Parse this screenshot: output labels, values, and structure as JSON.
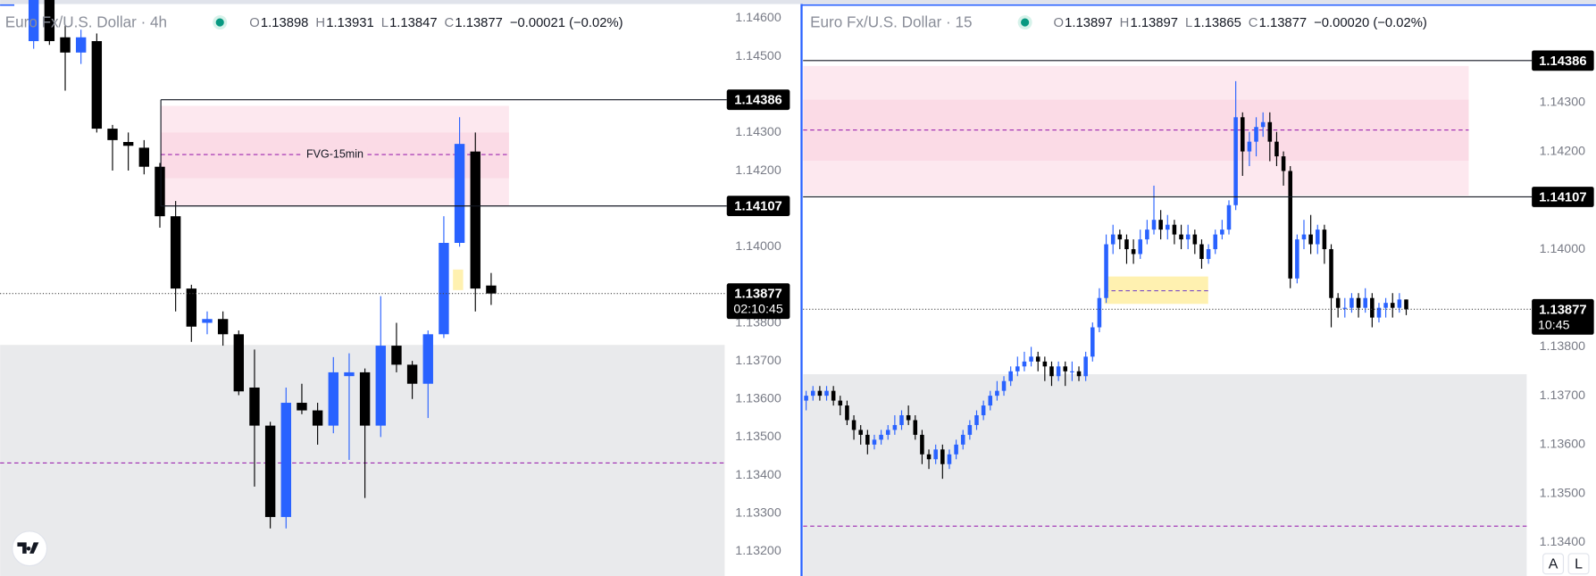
{
  "chart_data": [
    {
      "type": "candlestick",
      "title": "Euro Fx/U.S. Dollar · 4h",
      "legend_fields": [
        {
          "key": "O",
          "value": "1.13898"
        },
        {
          "key": "H",
          "value": "1.13931"
        },
        {
          "key": "L",
          "value": "1.13847"
        },
        {
          "key": "C",
          "value": "1.13877"
        }
      ],
      "change": "−0.00021 (−0.02%)",
      "ylim": [
        1.13135,
        1.14648
      ],
      "yticks": [
        {
          "value": 1.146,
          "label": "1.14600"
        },
        {
          "value": 1.145,
          "label": "1.14500"
        },
        {
          "value": 1.143,
          "label": "1.14300"
        },
        {
          "value": 1.142,
          "label": "1.14200"
        },
        {
          "value": 1.14,
          "label": "1.14000"
        },
        {
          "value": 1.138,
          "label": "1.13800"
        },
        {
          "value": 1.137,
          "label": "1.13700"
        },
        {
          "value": 1.136,
          "label": "1.13600"
        },
        {
          "value": 1.135,
          "label": "1.13500"
        },
        {
          "value": 1.134,
          "label": "1.13400"
        },
        {
          "value": 1.133,
          "label": "1.13300"
        },
        {
          "value": 1.132,
          "label": "1.13200"
        }
      ],
      "open": [
        1.1454,
        1.1466,
        1.1455,
        1.1451,
        1.1454,
        1.1431,
        1.14275,
        1.1426,
        1.1421,
        1.1408,
        1.1389,
        1.138,
        1.1381,
        1.1377,
        1.1363,
        1.1353,
        1.1329,
        1.1359,
        1.1357,
        1.1353,
        1.1366,
        1.1367,
        1.1353,
        1.1374,
        1.1369,
        1.1364,
        1.1377,
        1.1401,
        1.1425,
        1.13898
      ],
      "high": [
        1.1468,
        1.1467,
        1.1458,
        1.1457,
        1.1456,
        1.1432,
        1.143,
        1.1428,
        1.1422,
        1.1412,
        1.139,
        1.1383,
        1.1383,
        1.1378,
        1.1373,
        1.1354,
        1.1363,
        1.1364,
        1.1359,
        1.1371,
        1.1372,
        1.1368,
        1.1387,
        1.138,
        1.137,
        1.1378,
        1.1408,
        1.1434,
        1.143,
        1.13931
      ],
      "low": [
        1.1452,
        1.1453,
        1.1441,
        1.1448,
        1.143,
        1.142,
        1.142,
        1.1419,
        1.1405,
        1.1383,
        1.1375,
        1.1377,
        1.1374,
        1.1361,
        1.1337,
        1.1326,
        1.1326,
        1.1356,
        1.1348,
        1.1351,
        1.1344,
        1.1334,
        1.135,
        1.1367,
        1.136,
        1.1355,
        1.1376,
        1.14,
        1.1383,
        1.13847
      ],
      "close": [
        1.1466,
        1.1454,
        1.1451,
        1.1455,
        1.1431,
        1.1428,
        1.14265,
        1.1421,
        1.1408,
        1.1389,
        1.1379,
        1.1381,
        1.1377,
        1.1362,
        1.1353,
        1.1329,
        1.1359,
        1.1357,
        1.1353,
        1.1367,
        1.1367,
        1.1353,
        1.1374,
        1.1369,
        1.1364,
        1.1377,
        1.1401,
        1.1427,
        1.1389,
        1.13877
      ],
      "up_color": "#2962ff",
      "down_color": "#000000",
      "price_lines": [
        1.14386,
        1.14107
      ],
      "last_price": 1.13877,
      "countdown": "02:10:45",
      "zone": {
        "label": "FVG-15min",
        "top": 1.1437,
        "bottom": 1.14108,
        "inner_top": 1.143,
        "inner_bottom": 1.1418,
        "mid": 1.14242,
        "color": "#fde8ef",
        "inner_color": "#fbdbe6",
        "mid_color": "#9c27b0"
      },
      "highlight": {
        "top": 1.1394,
        "bottom": 1.13886,
        "color": "#fff1b0"
      },
      "shaded_below": 1.13742,
      "shade_color": "#e9eaec",
      "dashed_level": 1.13432,
      "dashed_color": "#9c27b0"
    },
    {
      "type": "candlestick",
      "title": "Euro Fx/U.S. Dollar · 15",
      "legend_fields": [
        {
          "key": "O",
          "value": "1.13897"
        },
        {
          "key": "H",
          "value": "1.13897"
        },
        {
          "key": "L",
          "value": "1.13865"
        },
        {
          "key": "C",
          "value": "1.13877"
        }
      ],
      "change": "−0.00020 (−0.02%)",
      "ylim": [
        1.13331,
        1.1451
      ],
      "yticks": [
        {
          "value": 1.143,
          "label": "1.14300"
        },
        {
          "value": 1.142,
          "label": "1.14200"
        },
        {
          "value": 1.14,
          "label": "1.14000"
        },
        {
          "value": 1.138,
          "label": "1.13800"
        },
        {
          "value": 1.137,
          "label": "1.13700"
        },
        {
          "value": 1.136,
          "label": "1.13600"
        },
        {
          "value": 1.135,
          "label": "1.13500"
        },
        {
          "value": 1.134,
          "label": "1.13400"
        }
      ],
      "open": [
        1.1369,
        1.137,
        1.1371,
        1.137,
        1.1371,
        1.1369,
        1.1368,
        1.1365,
        1.1363,
        1.1362,
        1.136,
        1.1361,
        1.1362,
        1.1363,
        1.1364,
        1.1366,
        1.1365,
        1.1362,
        1.1358,
        1.1357,
        1.1359,
        1.1356,
        1.1358,
        1.136,
        1.1362,
        1.1364,
        1.1366,
        1.1368,
        1.137,
        1.1371,
        1.1373,
        1.1375,
        1.1376,
        1.1377,
        1.1378,
        1.1377,
        1.1376,
        1.1374,
        1.1376,
        1.1375,
        1.1375,
        1.1374,
        1.1378,
        1.1384,
        1.139,
        1.1401,
        1.1403,
        1.1402,
        1.14,
        1.1399,
        1.1402,
        1.1404,
        1.1406,
        1.1404,
        1.1405,
        1.1403,
        1.1402,
        1.1403,
        1.1401,
        1.1398,
        1.14,
        1.1403,
        1.1404,
        1.1409,
        1.1427,
        1.142,
        1.1422,
        1.1425,
        1.1426,
        1.1422,
        1.1419,
        1.1416,
        1.1394,
        1.1402,
        1.1403,
        1.1401,
        1.1404,
        1.14,
        1.139,
        1.1388,
        1.1388,
        1.139,
        1.1388,
        1.139,
        1.1386,
        1.1388,
        1.1389,
        1.1388,
        1.13897
      ],
      "high": [
        1.1371,
        1.1372,
        1.1372,
        1.1372,
        1.1372,
        1.137,
        1.1369,
        1.1366,
        1.1364,
        1.1363,
        1.1362,
        1.1363,
        1.1364,
        1.1366,
        1.1367,
        1.1368,
        1.1366,
        1.1363,
        1.1359,
        1.136,
        1.136,
        1.1359,
        1.1361,
        1.1363,
        1.1365,
        1.1367,
        1.1369,
        1.1371,
        1.1373,
        1.1374,
        1.1376,
        1.1378,
        1.1379,
        1.138,
        1.1379,
        1.1378,
        1.1377,
        1.1377,
        1.1377,
        1.1377,
        1.1376,
        1.1379,
        1.1385,
        1.1392,
        1.1403,
        1.1405,
        1.1404,
        1.1403,
        1.1402,
        1.1404,
        1.1406,
        1.1413,
        1.1408,
        1.1407,
        1.1406,
        1.1405,
        1.1405,
        1.1404,
        1.1402,
        1.1401,
        1.1404,
        1.1406,
        1.141,
        1.14344,
        1.1428,
        1.1424,
        1.1427,
        1.1428,
        1.1428,
        1.1424,
        1.142,
        1.1417,
        1.1403,
        1.1406,
        1.1407,
        1.1405,
        1.1405,
        1.1401,
        1.1391,
        1.139,
        1.1391,
        1.1391,
        1.1392,
        1.1391,
        1.1389,
        1.139,
        1.1391,
        1.1391,
        1.13897
      ],
      "low": [
        1.1367,
        1.1369,
        1.1369,
        1.1369,
        1.1368,
        1.1366,
        1.1364,
        1.1361,
        1.136,
        1.1358,
        1.1359,
        1.136,
        1.1361,
        1.1362,
        1.1363,
        1.1364,
        1.1361,
        1.1356,
        1.1355,
        1.1356,
        1.1353,
        1.1355,
        1.1357,
        1.1359,
        1.1361,
        1.1363,
        1.1365,
        1.1367,
        1.1369,
        1.137,
        1.1372,
        1.1374,
        1.1375,
        1.1376,
        1.1375,
        1.1373,
        1.1372,
        1.1373,
        1.1372,
        1.1373,
        1.1373,
        1.1373,
        1.1377,
        1.1383,
        1.1389,
        1.1399,
        1.14,
        1.1397,
        1.1397,
        1.1398,
        1.1401,
        1.1403,
        1.1402,
        1.1402,
        1.1401,
        1.14,
        1.14,
        1.1399,
        1.1396,
        1.1397,
        1.1399,
        1.1402,
        1.1403,
        1.1408,
        1.1415,
        1.1417,
        1.1419,
        1.1423,
        1.1418,
        1.1417,
        1.1413,
        1.1392,
        1.1393,
        1.14,
        1.1399,
        1.1399,
        1.1397,
        1.1384,
        1.1386,
        1.1386,
        1.1387,
        1.1386,
        1.1387,
        1.1384,
        1.1385,
        1.1386,
        1.1386,
        1.1387,
        1.13865
      ],
      "close": [
        1.137,
        1.1371,
        1.137,
        1.1371,
        1.1369,
        1.1368,
        1.1365,
        1.1363,
        1.1362,
        1.136,
        1.1361,
        1.1362,
        1.1363,
        1.1364,
        1.1366,
        1.1365,
        1.1362,
        1.1358,
        1.1357,
        1.1359,
        1.1356,
        1.1358,
        1.136,
        1.1362,
        1.1364,
        1.1366,
        1.1368,
        1.137,
        1.1371,
        1.1373,
        1.1375,
        1.1376,
        1.1377,
        1.1378,
        1.1377,
        1.1376,
        1.1374,
        1.1376,
        1.1375,
        1.1375,
        1.1374,
        1.1378,
        1.1384,
        1.139,
        1.1401,
        1.1403,
        1.1402,
        1.14,
        1.1399,
        1.1402,
        1.1404,
        1.1406,
        1.1404,
        1.1405,
        1.1403,
        1.1402,
        1.1403,
        1.1401,
        1.1398,
        1.14,
        1.1403,
        1.1404,
        1.1409,
        1.1427,
        1.142,
        1.1422,
        1.1425,
        1.1426,
        1.1422,
        1.1419,
        1.1416,
        1.1394,
        1.1402,
        1.1403,
        1.1401,
        1.1404,
        1.14,
        1.139,
        1.1388,
        1.1388,
        1.139,
        1.1388,
        1.139,
        1.1386,
        1.1388,
        1.1389,
        1.1388,
        1.13897,
        1.13877
      ],
      "up_color": "#2962ff",
      "down_color": "#000000",
      "price_lines": [
        1.14386,
        1.14107
      ],
      "last_price": 1.13877,
      "countdown": "10:45",
      "zone": {
        "top": 1.14375,
        "bottom": 1.1411,
        "inner_top": 1.14306,
        "inner_bottom": 1.14181,
        "mid": 1.14244,
        "color": "#fde8ef",
        "inner_color": "#fbdbe6",
        "mid_color": "#9c27b0"
      },
      "highlight": {
        "top": 1.13944,
        "bottom": 1.13888,
        "mid": 1.13915,
        "color": "#fff1b0"
      },
      "shaded_below": 1.13744,
      "shade_color": "#e9eaec",
      "dashed_level": 1.13433,
      "dashed_color": "#9c27b0"
    }
  ],
  "buttons": [
    "A",
    "L"
  ]
}
